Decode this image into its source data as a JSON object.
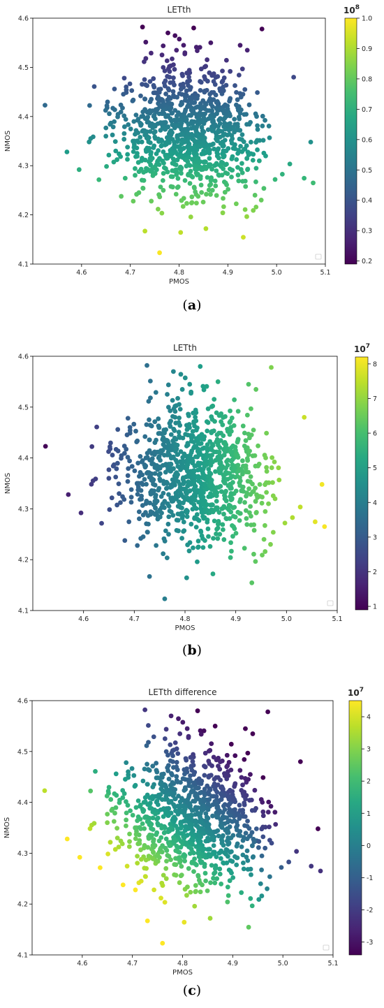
{
  "chart_data": [
    {
      "type": "scatter",
      "panel_label": "a",
      "title": "LETth",
      "xlabel": "PMOS",
      "ylabel": "NMOS",
      "xlim": [
        4.5,
        5.1
      ],
      "ylim": [
        4.1,
        4.6
      ],
      "xticks": [
        "4.6",
        "4.7",
        "4.8",
        "4.9",
        "5.0",
        "5.1"
      ],
      "yticks": [
        "4.1",
        "4.2",
        "4.3",
        "4.4",
        "4.5",
        "4.6"
      ],
      "colorbar": {
        "colormap": "viridis",
        "range": [
          0.19,
          1.0
        ],
        "ticks": [
          "0.2",
          "0.3",
          "0.4",
          "0.5",
          "0.6",
          "0.7",
          "0.8",
          "0.9",
          "1.0"
        ],
        "exponent_label": "10",
        "exponent": "8",
        "description": "color increases as NMOS decreases"
      },
      "color_by": "nmos",
      "legend": "lower right (empty)",
      "grid": false,
      "points_note": "≈1000 points, PMOS ~ N(4.82, 0.08), NMOS ~ N(4.37, 0.07); outliers listed",
      "outliers": [
        [
          4.525,
          4.423
        ],
        [
          4.57,
          4.328
        ],
        [
          4.595,
          4.292
        ],
        [
          4.76,
          4.123
        ],
        [
          5.07,
          4.348
        ],
        [
          5.075,
          4.265
        ],
        [
          4.725,
          4.582
        ],
        [
          4.83,
          4.58
        ],
        [
          4.97,
          4.578
        ],
        [
          5.035,
          4.48
        ],
        [
          4.73,
          4.167
        ],
        [
          4.855,
          4.172
        ]
      ]
    },
    {
      "type": "scatter",
      "panel_label": "b",
      "title": "LETth",
      "xlabel": "PMOS",
      "ylabel": "NMOS",
      "xlim": [
        4.5,
        5.1
      ],
      "ylim": [
        4.1,
        4.6
      ],
      "xticks": [
        "4.6",
        "4.7",
        "4.8",
        "4.9",
        "5.0",
        "5.1"
      ],
      "yticks": [
        "4.1",
        "4.2",
        "4.3",
        "4.4",
        "4.5",
        "4.6"
      ],
      "colorbar": {
        "colormap": "viridis",
        "range": [
          0.9,
          8.2
        ],
        "ticks": [
          "1",
          "2",
          "3",
          "4",
          "5",
          "6",
          "7",
          "8"
        ],
        "exponent_label": "10",
        "exponent": "7",
        "description": "color increases as PMOS increases"
      },
      "color_by": "pmos",
      "legend": "lower right (empty)",
      "grid": false
    },
    {
      "type": "scatter",
      "panel_label": "c",
      "title": "LETth difference",
      "xlabel": "PMOS",
      "ylabel": "NMOS",
      "xlim": [
        4.5,
        5.1
      ],
      "ylim": [
        4.1,
        4.6
      ],
      "xticks": [
        "4.6",
        "4.7",
        "4.8",
        "4.9",
        "5.0",
        "5.1"
      ],
      "yticks": [
        "4.1",
        "4.2",
        "4.3",
        "4.4",
        "4.5",
        "4.6"
      ],
      "colorbar": {
        "colormap": "viridis",
        "range": [
          -3.4,
          4.5
        ],
        "ticks": [
          "-3",
          "-2",
          "-1",
          "0",
          "1",
          "2",
          "3",
          "4"
        ],
        "exponent_label": "10",
        "exponent": "7",
        "description": "color is highest at low PMOS / low NMOS, lowest at high PMOS / high NMOS"
      },
      "color_by": "difference",
      "legend": "lower right (empty)",
      "grid": false
    }
  ],
  "captions": [
    "a",
    "b",
    "c"
  ],
  "colors": {
    "viridis_dark": "#440154",
    "viridis_mid": "#21918c",
    "viridis_light": "#fde725"
  }
}
